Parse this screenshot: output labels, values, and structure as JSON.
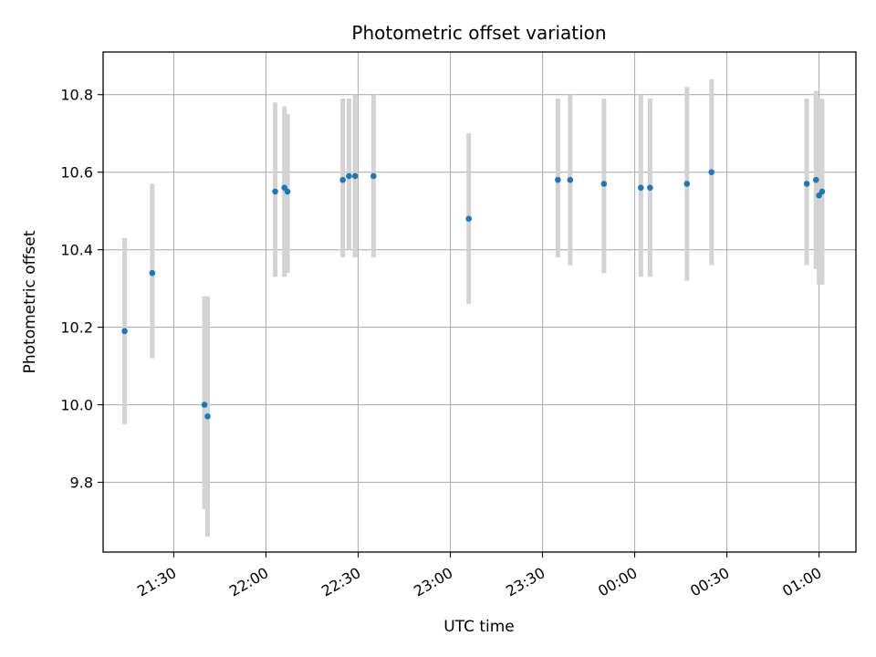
{
  "chart_data": {
    "type": "scatter",
    "title": "Photometric offset variation",
    "xlabel": "UTC time",
    "ylabel": "Photometric offset",
    "x_ticks": [
      "21:30",
      "22:00",
      "22:30",
      "23:00",
      "23:30",
      "00:00",
      "00:30",
      "01:00"
    ],
    "y_ticks": [
      "9.8",
      "10.0",
      "10.2",
      "10.4",
      "10.6",
      "10.8"
    ],
    "xlim": [
      "21:07",
      "01:12"
    ],
    "ylim": [
      9.62,
      10.91
    ],
    "grid": true,
    "colors": {
      "point": "#1f77b4",
      "errorbar": "#d3d3d3",
      "grid": "#b0b0b0"
    },
    "points": [
      {
        "x": "21:14",
        "y": 10.19,
        "ylow": 9.95,
        "yhigh": 10.43
      },
      {
        "x": "21:23",
        "y": 10.34,
        "ylow": 10.12,
        "yhigh": 10.57
      },
      {
        "x": "21:40",
        "y": 10.0,
        "ylow": 9.73,
        "yhigh": 10.28
      },
      {
        "x": "21:41",
        "y": 9.97,
        "ylow": 9.66,
        "yhigh": 10.28
      },
      {
        "x": "22:03",
        "y": 10.55,
        "ylow": 10.33,
        "yhigh": 10.78
      },
      {
        "x": "22:06",
        "y": 10.56,
        "ylow": 10.33,
        "yhigh": 10.77
      },
      {
        "x": "22:07",
        "y": 10.55,
        "ylow": 10.34,
        "yhigh": 10.75
      },
      {
        "x": "22:25",
        "y": 10.58,
        "ylow": 10.38,
        "yhigh": 10.79
      },
      {
        "x": "22:27",
        "y": 10.59,
        "ylow": 10.4,
        "yhigh": 10.79
      },
      {
        "x": "22:29",
        "y": 10.59,
        "ylow": 10.38,
        "yhigh": 10.8
      },
      {
        "x": "22:35",
        "y": 10.59,
        "ylow": 10.38,
        "yhigh": 10.8
      },
      {
        "x": "23:06",
        "y": 10.48,
        "ylow": 10.26,
        "yhigh": 10.7
      },
      {
        "x": "23:35",
        "y": 10.58,
        "ylow": 10.38,
        "yhigh": 10.79
      },
      {
        "x": "23:39",
        "y": 10.58,
        "ylow": 10.36,
        "yhigh": 10.8
      },
      {
        "x": "23:50",
        "y": 10.57,
        "ylow": 10.34,
        "yhigh": 10.79
      },
      {
        "x": "00:02",
        "y": 10.56,
        "ylow": 10.33,
        "yhigh": 10.8
      },
      {
        "x": "00:05",
        "y": 10.56,
        "ylow": 10.33,
        "yhigh": 10.79
      },
      {
        "x": "00:17",
        "y": 10.57,
        "ylow": 10.32,
        "yhigh": 10.82
      },
      {
        "x": "00:25",
        "y": 10.6,
        "ylow": 10.36,
        "yhigh": 10.84
      },
      {
        "x": "00:56",
        "y": 10.57,
        "ylow": 10.36,
        "yhigh": 10.79
      },
      {
        "x": "00:59",
        "y": 10.58,
        "ylow": 10.35,
        "yhigh": 10.81
      },
      {
        "x": "01:00",
        "y": 10.54,
        "ylow": 10.31,
        "yhigh": 10.79
      },
      {
        "x": "01:01",
        "y": 10.55,
        "ylow": 10.31,
        "yhigh": 10.79
      }
    ]
  }
}
